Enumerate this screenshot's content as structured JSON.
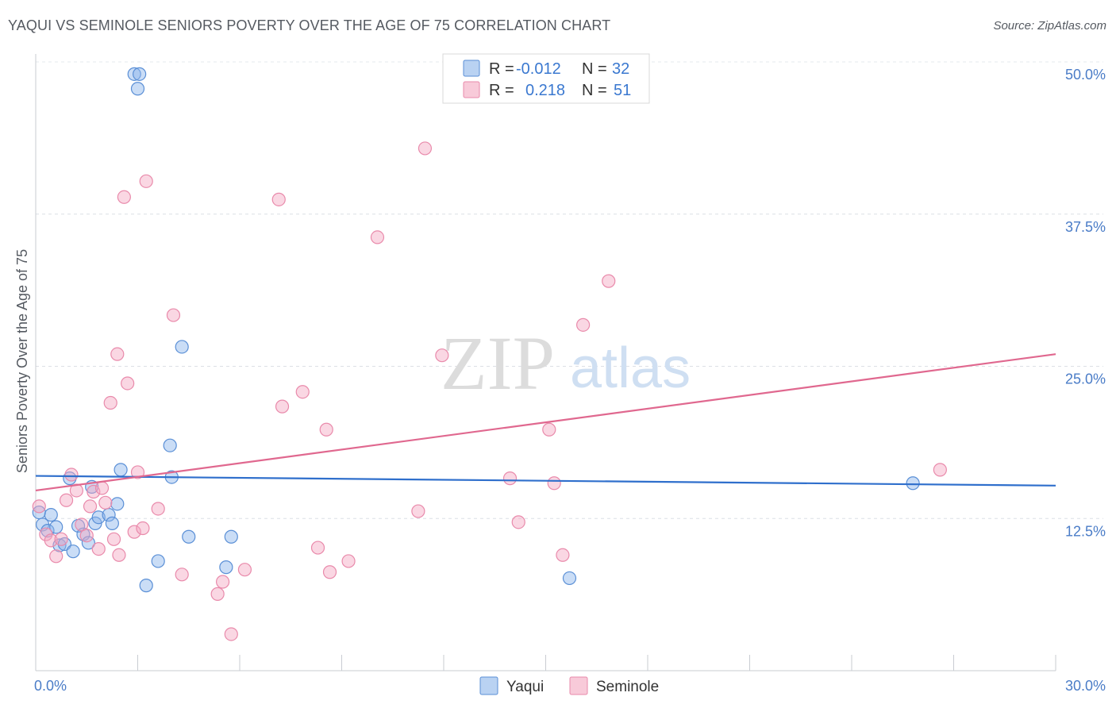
{
  "title": "YAQUI VS SEMINOLE SENIORS POVERTY OVER THE AGE OF 75 CORRELATION CHART",
  "source": "Source: ZipAtlas.com",
  "watermark": {
    "part1": "ZIP",
    "part2": "atlas"
  },
  "legend": {
    "rows": [
      {
        "r_label": "R =",
        "r_value": "-0.012",
        "n_label": "N =",
        "n_value": "32",
        "color": "#8ab4ea"
      },
      {
        "r_label": "R =",
        "r_value": "0.218",
        "n_label": "N =",
        "n_value": "51",
        "color": "#f4a7c0"
      }
    ]
  },
  "chart_data": {
    "type": "scatter",
    "title": "YAQUI VS SEMINOLE SENIORS POVERTY OVER THE AGE OF 75 CORRELATION CHART",
    "xlabel": "",
    "ylabel": "Seniors Poverty Over the Age of 75",
    "xlim": [
      0,
      30
    ],
    "ylim": [
      0,
      50
    ],
    "x_tick_labels": [
      "0.0%",
      "30.0%"
    ],
    "y_ticks": [
      12.5,
      25.0,
      37.5,
      50.0
    ],
    "y_tick_labels": [
      "12.5%",
      "25.0%",
      "37.5%",
      "50.0%"
    ],
    "grid": true,
    "legend_position": "bottom-center",
    "series": [
      {
        "name": "Yaqui",
        "color": "#8ab4ea",
        "stroke": "#5a8fd6",
        "trend": {
          "x": [
            0,
            30
          ],
          "y": [
            16.0,
            15.2
          ],
          "color": "#2f6fcc"
        },
        "points": [
          [
            0.1,
            13.0
          ],
          [
            0.2,
            12.0
          ],
          [
            0.35,
            11.5
          ],
          [
            0.45,
            12.8
          ],
          [
            0.6,
            11.8
          ],
          [
            0.7,
            10.3
          ],
          [
            0.85,
            10.4
          ],
          [
            1.0,
            15.8
          ],
          [
            1.1,
            9.8
          ],
          [
            1.25,
            11.9
          ],
          [
            1.4,
            11.2
          ],
          [
            1.55,
            10.5
          ],
          [
            1.65,
            15.1
          ],
          [
            1.75,
            12.1
          ],
          [
            1.85,
            12.6
          ],
          [
            2.15,
            12.8
          ],
          [
            2.25,
            12.1
          ],
          [
            2.4,
            13.7
          ],
          [
            2.5,
            16.5
          ],
          [
            2.9,
            49.0
          ],
          [
            3.05,
            49.0
          ],
          [
            3.0,
            47.8
          ],
          [
            3.25,
            7.0
          ],
          [
            3.6,
            9.0
          ],
          [
            3.95,
            18.5
          ],
          [
            4.0,
            15.9
          ],
          [
            4.3,
            26.6
          ],
          [
            4.5,
            11.0
          ],
          [
            5.6,
            8.5
          ],
          [
            5.75,
            11.0
          ],
          [
            15.7,
            7.6
          ],
          [
            25.8,
            15.4
          ]
        ]
      },
      {
        "name": "Seminole",
        "color": "#f4a7c0",
        "stroke": "#e98aab",
        "trend": {
          "x": [
            0,
            30
          ],
          "y": [
            14.8,
            26.0
          ],
          "color": "#e0688f"
        },
        "points": [
          [
            0.1,
            13.5
          ],
          [
            0.3,
            11.2
          ],
          [
            0.45,
            10.7
          ],
          [
            0.6,
            9.4
          ],
          [
            0.75,
            10.8
          ],
          [
            0.9,
            14.0
          ],
          [
            1.05,
            16.1
          ],
          [
            1.2,
            14.8
          ],
          [
            1.35,
            12.0
          ],
          [
            1.5,
            11.1
          ],
          [
            1.6,
            13.5
          ],
          [
            1.7,
            14.7
          ],
          [
            1.85,
            10.0
          ],
          [
            1.95,
            15.0
          ],
          [
            2.05,
            13.8
          ],
          [
            2.2,
            22.0
          ],
          [
            2.3,
            10.8
          ],
          [
            2.4,
            26.0
          ],
          [
            2.45,
            9.5
          ],
          [
            2.6,
            38.9
          ],
          [
            2.7,
            23.6
          ],
          [
            2.9,
            11.4
          ],
          [
            3.0,
            16.3
          ],
          [
            3.15,
            11.7
          ],
          [
            3.25,
            40.2
          ],
          [
            3.6,
            13.3
          ],
          [
            4.05,
            29.2
          ],
          [
            4.3,
            7.9
          ],
          [
            5.35,
            6.3
          ],
          [
            5.5,
            7.3
          ],
          [
            5.75,
            3.0
          ],
          [
            6.15,
            8.3
          ],
          [
            7.15,
            38.7
          ],
          [
            7.25,
            21.7
          ],
          [
            7.85,
            22.9
          ],
          [
            8.3,
            10.1
          ],
          [
            8.55,
            19.8
          ],
          [
            8.65,
            8.1
          ],
          [
            9.2,
            9.0
          ],
          [
            10.05,
            35.6
          ],
          [
            11.25,
            13.1
          ],
          [
            11.45,
            42.9
          ],
          [
            11.95,
            25.9
          ],
          [
            13.95,
            15.8
          ],
          [
            14.2,
            12.2
          ],
          [
            15.1,
            19.8
          ],
          [
            15.25,
            15.4
          ],
          [
            15.5,
            9.5
          ],
          [
            16.1,
            28.4
          ],
          [
            16.85,
            32.0
          ],
          [
            26.6,
            16.5
          ]
        ]
      }
    ]
  }
}
